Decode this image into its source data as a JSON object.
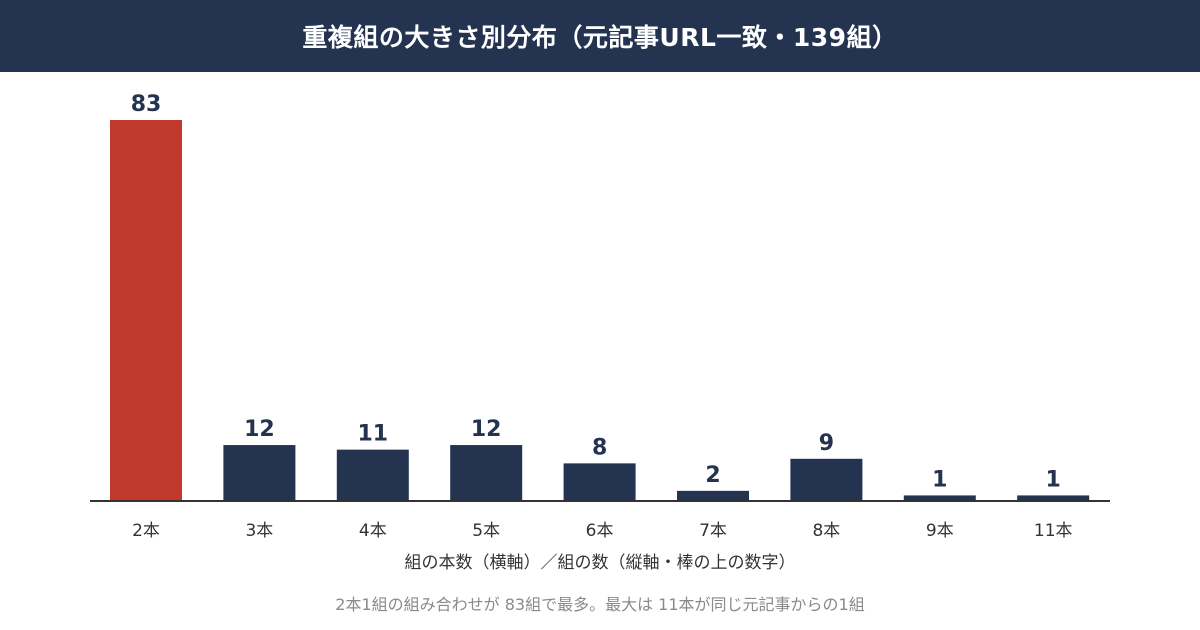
{
  "chart_data": {
    "type": "bar",
    "title": "重複組の大きさ別分布（元記事URL一致・139組）",
    "xlabel": "組の本数（横軸）／組の数（縦軸・棒の上の数字）",
    "ylabel": "",
    "categories": [
      "2本",
      "3本",
      "4本",
      "5本",
      "6本",
      "7本",
      "8本",
      "9本",
      "11本"
    ],
    "values": [
      83,
      12,
      11,
      12,
      8,
      2,
      9,
      1,
      1
    ],
    "ylim": [
      0,
      83
    ],
    "grid": false,
    "legend": "none",
    "highlight_index": 0,
    "data_labels": true
  },
  "caption": "2本1組の組み合わせが 83組で最多。最大は 11本が同じ元記事からの1組",
  "colors": {
    "header_bg": "#233350",
    "bar": "#233350",
    "highlight": "#C0392B",
    "axis": "#333333",
    "caption": "#8a8a8a"
  }
}
